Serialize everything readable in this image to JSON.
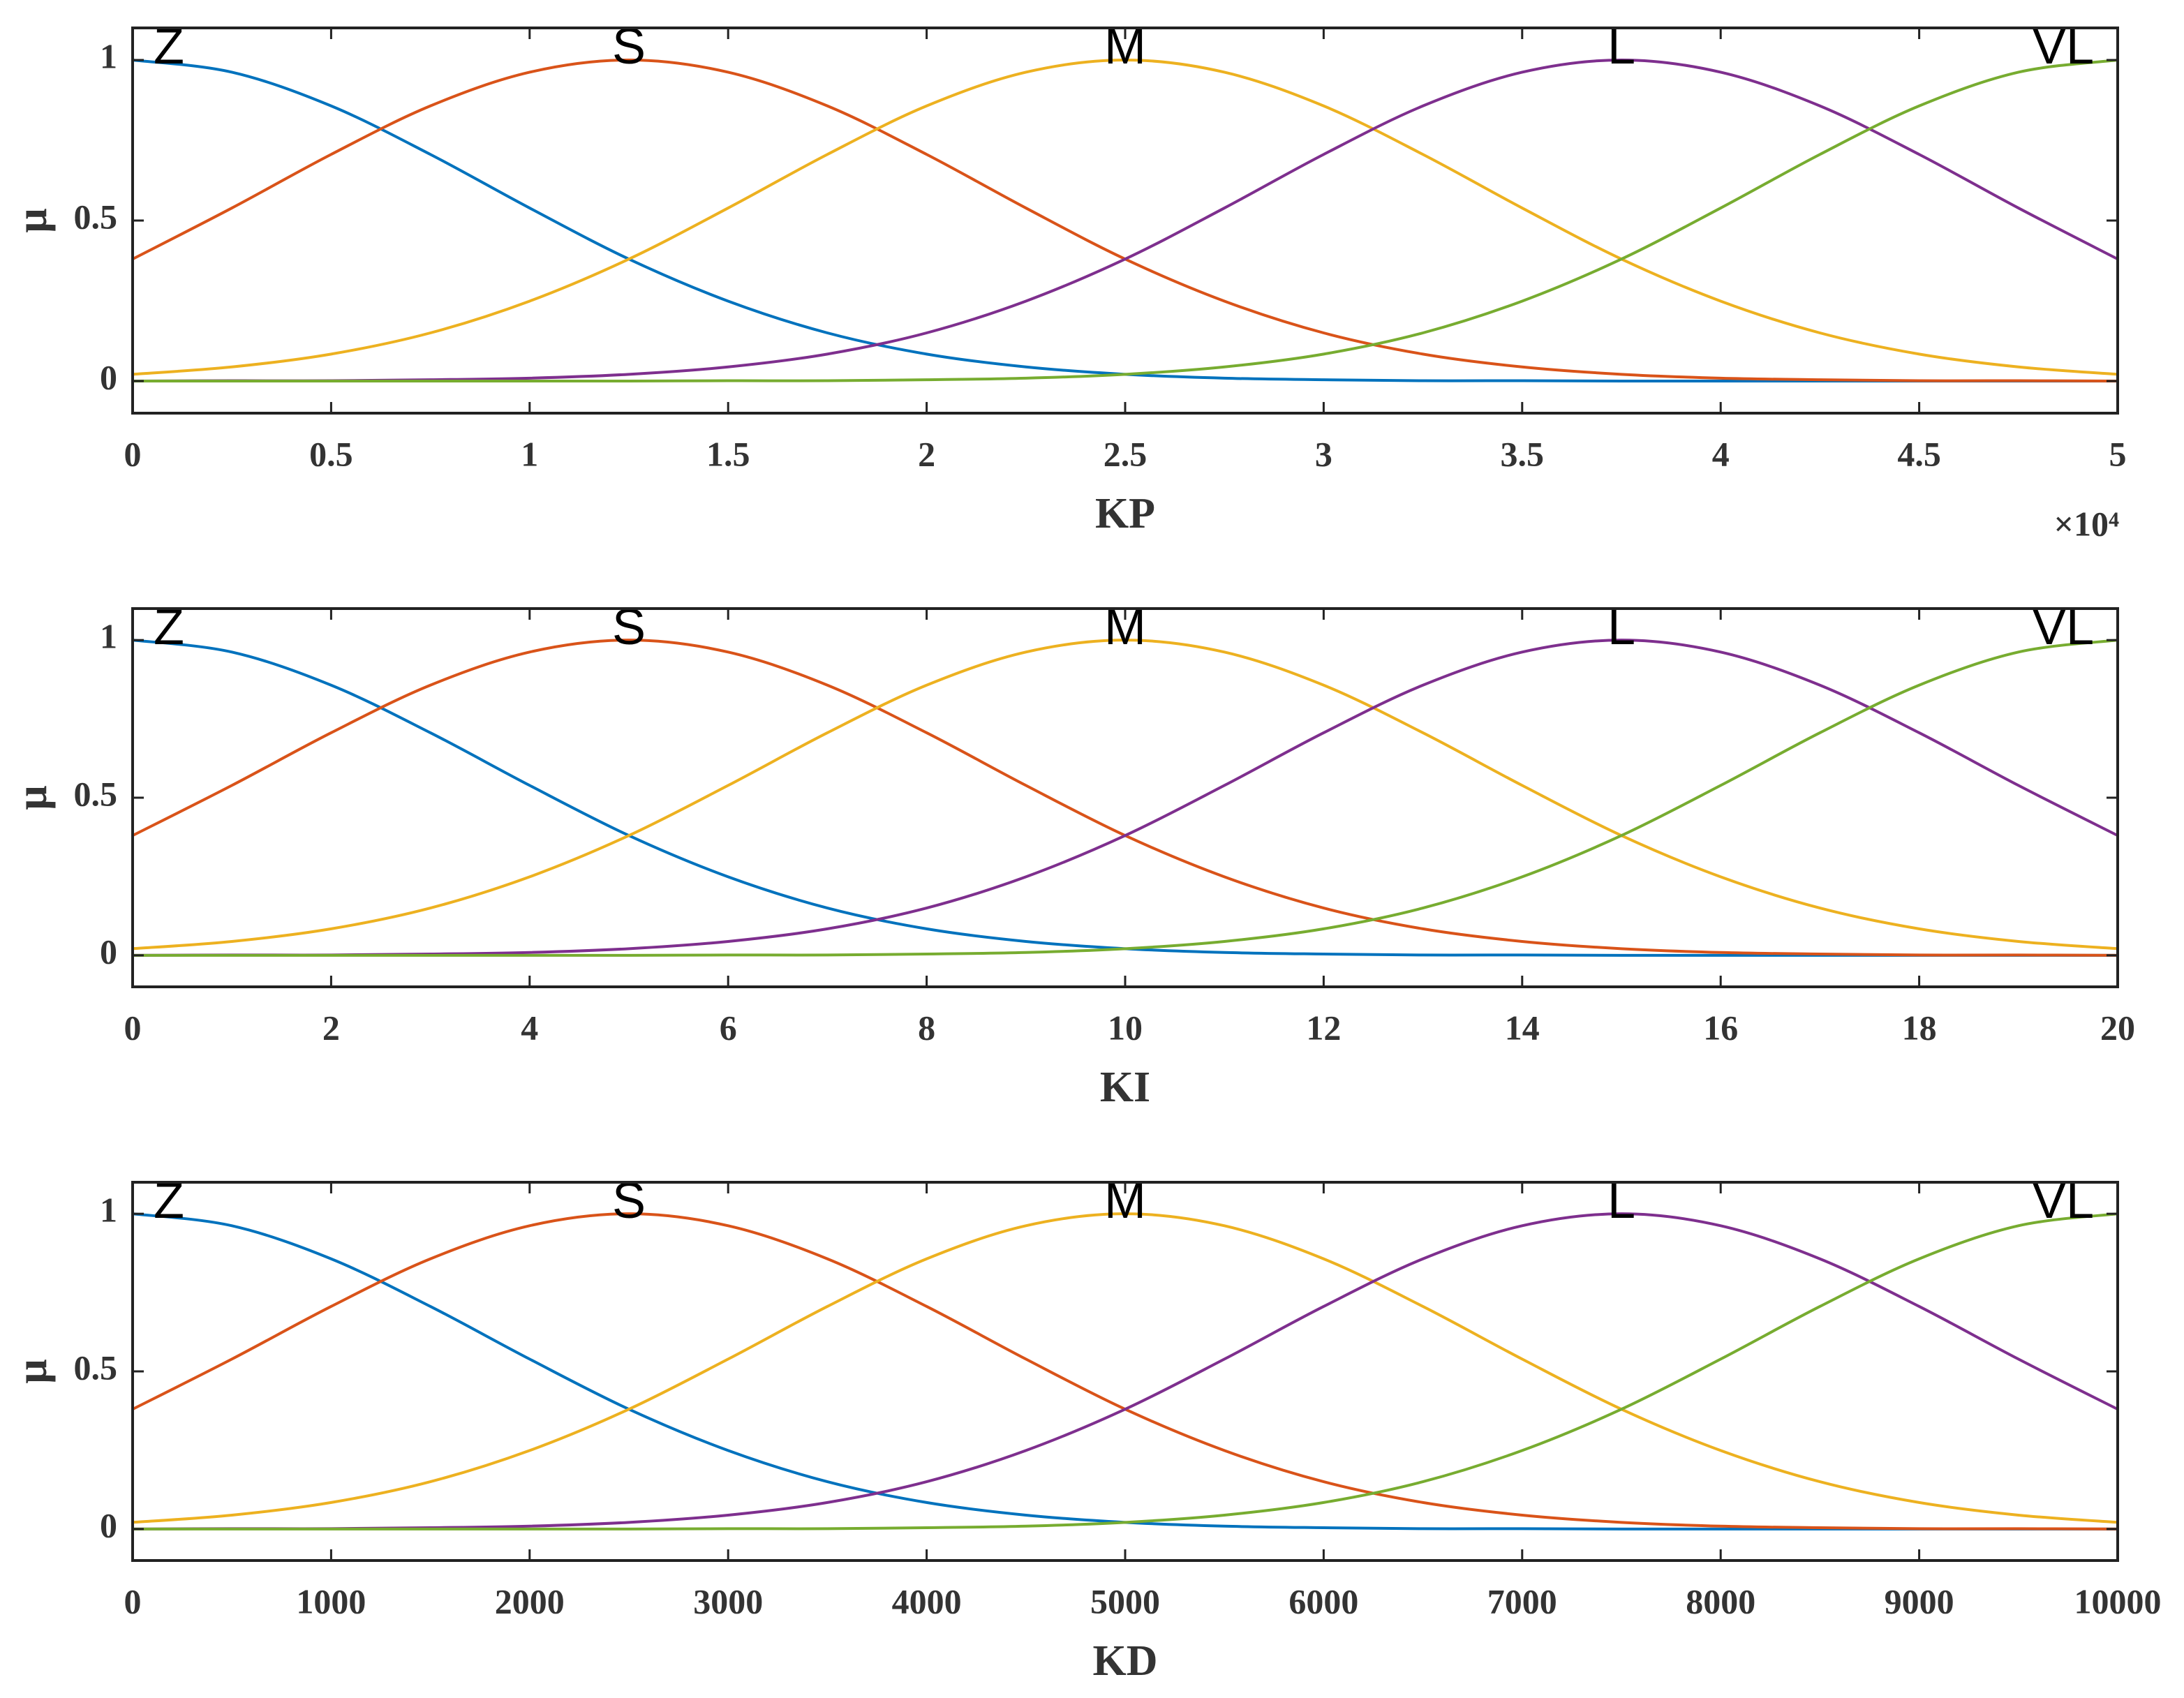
{
  "chart_data": [
    {
      "type": "line",
      "xlabel": "KP",
      "ylabel": "μ",
      "x_exponent_label": "×10⁴",
      "x": [
        0,
        2500,
        5000,
        7500,
        10000,
        12500,
        15000,
        17500,
        20000,
        22500,
        25000,
        27500,
        30000,
        32500,
        35000,
        37500,
        40000,
        42500,
        45000,
        47500,
        50000
      ],
      "xlim": [
        0,
        50000
      ],
      "ylim": [
        -0.1,
        1.1
      ],
      "xticks": [
        0,
        {
          "value": 5000,
          "label": "0.5"
        },
        {
          "value": 10000,
          "label": "1"
        },
        {
          "value": 15000,
          "label": "1.5"
        },
        {
          "value": 20000,
          "label": "2"
        },
        {
          "value": 25000,
          "label": "2.5"
        },
        {
          "value": 30000,
          "label": "3"
        },
        {
          "value": 35000,
          "label": "3.5"
        },
        {
          "value": 40000,
          "label": "4"
        },
        {
          "value": 45000,
          "label": "4.5"
        },
        {
          "value": 50000,
          "label": "5"
        }
      ],
      "yticks": [
        0,
        0.5,
        1
      ],
      "series": [
        {
          "name": "Z",
          "color": "#0072BD",
          "values": [
            1,
            0.962,
            0.857,
            0.706,
            0.539,
            0.38,
            0.249,
            0.15,
            0.084,
            0.044,
            0.021,
            0.009,
            0.004,
            0.001,
            0.001,
            0,
            0,
            0,
            0,
            0,
            0
          ]
        },
        {
          "name": "S",
          "color": "#D95319",
          "values": [
            0.38,
            0.539,
            0.706,
            0.857,
            0.962,
            1,
            0.962,
            0.857,
            0.706,
            0.539,
            0.38,
            0.249,
            0.15,
            0.084,
            0.044,
            0.021,
            0.009,
            0.004,
            0.001,
            0.001,
            0
          ]
        },
        {
          "name": "M",
          "color": "#EDB120",
          "values": [
            0.021,
            0.044,
            0.084,
            0.15,
            0.249,
            0.38,
            0.539,
            0.706,
            0.857,
            0.962,
            1,
            0.962,
            0.857,
            0.706,
            0.539,
            0.38,
            0.249,
            0.15,
            0.084,
            0.044,
            0.021
          ]
        },
        {
          "name": "L",
          "color": "#7E2F8E",
          "values": [
            0,
            0.001,
            0.001,
            0.004,
            0.009,
            0.021,
            0.044,
            0.084,
            0.15,
            0.249,
            0.38,
            0.539,
            0.706,
            0.857,
            0.962,
            1,
            0.962,
            0.857,
            0.706,
            0.539,
            0.38
          ]
        },
        {
          "name": "VL",
          "color": "#77AC30",
          "values": [
            0,
            0,
            0,
            0,
            0,
            0,
            0.001,
            0.001,
            0.004,
            0.009,
            0.021,
            0.044,
            0.084,
            0.15,
            0.249,
            0.38,
            0.539,
            0.706,
            0.857,
            0.962,
            1
          ]
        }
      ]
    },
    {
      "type": "line",
      "xlabel": "KI",
      "ylabel": "μ",
      "x": [
        0,
        1,
        2,
        3,
        4,
        5,
        6,
        7,
        8,
        9,
        10,
        11,
        12,
        13,
        14,
        15,
        16,
        17,
        18,
        19,
        20
      ],
      "xlim": [
        0,
        20
      ],
      "ylim": [
        -0.1,
        1.1
      ],
      "xticks": [
        0,
        2,
        4,
        6,
        8,
        10,
        12,
        14,
        16,
        18,
        20
      ],
      "yticks": [
        0,
        0.5,
        1
      ],
      "series": [
        {
          "name": "Z",
          "color": "#0072BD",
          "values": [
            1,
            0.962,
            0.857,
            0.706,
            0.539,
            0.38,
            0.249,
            0.15,
            0.084,
            0.044,
            0.021,
            0.009,
            0.004,
            0.001,
            0.001,
            0,
            0,
            0,
            0,
            0,
            0
          ]
        },
        {
          "name": "S",
          "color": "#D95319",
          "values": [
            0.38,
            0.539,
            0.706,
            0.857,
            0.962,
            1,
            0.962,
            0.857,
            0.706,
            0.539,
            0.38,
            0.249,
            0.15,
            0.084,
            0.044,
            0.021,
            0.009,
            0.004,
            0.001,
            0.001,
            0
          ]
        },
        {
          "name": "M",
          "color": "#EDB120",
          "values": [
            0.021,
            0.044,
            0.084,
            0.15,
            0.249,
            0.38,
            0.539,
            0.706,
            0.857,
            0.962,
            1,
            0.962,
            0.857,
            0.706,
            0.539,
            0.38,
            0.249,
            0.15,
            0.084,
            0.044,
            0.021
          ]
        },
        {
          "name": "L",
          "color": "#7E2F8E",
          "values": [
            0,
            0.001,
            0.001,
            0.004,
            0.009,
            0.021,
            0.044,
            0.084,
            0.15,
            0.249,
            0.38,
            0.539,
            0.706,
            0.857,
            0.962,
            1,
            0.962,
            0.857,
            0.706,
            0.539,
            0.38
          ]
        },
        {
          "name": "VL",
          "color": "#77AC30",
          "values": [
            0,
            0,
            0,
            0,
            0,
            0,
            0.001,
            0.001,
            0.004,
            0.009,
            0.021,
            0.044,
            0.084,
            0.15,
            0.249,
            0.38,
            0.539,
            0.706,
            0.857,
            0.962,
            1
          ]
        }
      ]
    },
    {
      "type": "line",
      "xlabel": "KD",
      "ylabel": "μ",
      "x": [
        0,
        500,
        1000,
        1500,
        2000,
        2500,
        3000,
        3500,
        4000,
        4500,
        5000,
        5500,
        6000,
        6500,
        7000,
        7500,
        8000,
        8500,
        9000,
        9500,
        10000
      ],
      "xlim": [
        0,
        10000
      ],
      "ylim": [
        -0.1,
        1.1
      ],
      "xticks": [
        0,
        1000,
        2000,
        3000,
        4000,
        5000,
        6000,
        7000,
        8000,
        9000,
        10000
      ],
      "yticks": [
        0,
        0.5,
        1
      ],
      "series": [
        {
          "name": "Z",
          "color": "#0072BD",
          "values": [
            1,
            0.962,
            0.857,
            0.706,
            0.539,
            0.38,
            0.249,
            0.15,
            0.084,
            0.044,
            0.021,
            0.009,
            0.004,
            0.001,
            0.001,
            0,
            0,
            0,
            0,
            0,
            0
          ]
        },
        {
          "name": "S",
          "color": "#D95319",
          "values": [
            0.38,
            0.539,
            0.706,
            0.857,
            0.962,
            1,
            0.962,
            0.857,
            0.706,
            0.539,
            0.38,
            0.249,
            0.15,
            0.084,
            0.044,
            0.021,
            0.009,
            0.004,
            0.001,
            0.001,
            0
          ]
        },
        {
          "name": "M",
          "color": "#EDB120",
          "values": [
            0.021,
            0.044,
            0.084,
            0.15,
            0.249,
            0.38,
            0.539,
            0.706,
            0.857,
            0.962,
            1,
            0.962,
            0.857,
            0.706,
            0.539,
            0.38,
            0.249,
            0.15,
            0.084,
            0.044,
            0.021
          ]
        },
        {
          "name": "L",
          "color": "#7E2F8E",
          "values": [
            0,
            0.001,
            0.001,
            0.004,
            0.009,
            0.021,
            0.044,
            0.084,
            0.15,
            0.249,
            0.38,
            0.539,
            0.706,
            0.857,
            0.962,
            1,
            0.962,
            0.857,
            0.706,
            0.539,
            0.38
          ]
        },
        {
          "name": "VL",
          "color": "#77AC30",
          "values": [
            0,
            0,
            0,
            0,
            0,
            0,
            0.001,
            0.001,
            0.004,
            0.009,
            0.021,
            0.044,
            0.084,
            0.15,
            0.249,
            0.38,
            0.539,
            0.706,
            0.857,
            0.962,
            1
          ]
        }
      ]
    }
  ]
}
